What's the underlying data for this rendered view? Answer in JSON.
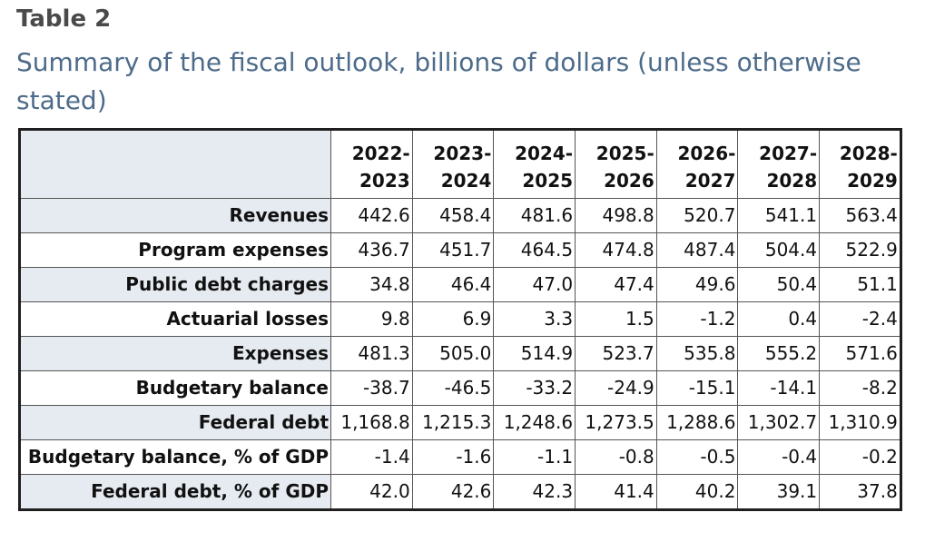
{
  "title": "Table 2",
  "subtitle": "Summary of the fiscal outlook, billions of dollars (unless otherwise stated)",
  "table": {
    "columns": [
      {
        "top": "2022-",
        "bottom": "2023"
      },
      {
        "top": "2023-",
        "bottom": "2024"
      },
      {
        "top": "2024-",
        "bottom": "2025"
      },
      {
        "top": "2025-",
        "bottom": "2026"
      },
      {
        "top": "2026-",
        "bottom": "2027"
      },
      {
        "top": "2027-",
        "bottom": "2028"
      },
      {
        "top": "2028-",
        "bottom": "2029"
      }
    ],
    "rows": [
      {
        "label": "Revenues",
        "values": [
          "442.6",
          "458.4",
          "481.6",
          "498.8",
          "520.7",
          "541.1",
          "563.4"
        ]
      },
      {
        "label": "Program expenses",
        "values": [
          "436.7",
          "451.7",
          "464.5",
          "474.8",
          "487.4",
          "504.4",
          "522.9"
        ]
      },
      {
        "label": "Public debt charges",
        "values": [
          "34.8",
          "46.4",
          "47.0",
          "47.4",
          "49.6",
          "50.4",
          "51.1"
        ]
      },
      {
        "label": "Actuarial losses",
        "values": [
          "9.8",
          "6.9",
          "3.3",
          "1.5",
          "-1.2",
          "0.4",
          "-2.4"
        ]
      },
      {
        "label": "Expenses",
        "values": [
          "481.3",
          "505.0",
          "514.9",
          "523.7",
          "535.8",
          "555.2",
          "571.6"
        ]
      },
      {
        "label": "Budgetary balance",
        "values": [
          "-38.7",
          "-46.5",
          "-33.2",
          "-24.9",
          "-15.1",
          "-14.1",
          "-8.2"
        ]
      },
      {
        "label": "Federal debt",
        "values": [
          "1,168.8",
          "1,215.3",
          "1,248.6",
          "1,273.5",
          "1,288.6",
          "1,302.7",
          "1,310.9"
        ]
      },
      {
        "label": "Budgetary balance, % of GDP",
        "values": [
          "-1.4",
          "-1.6",
          "-1.1",
          "-0.8",
          "-0.5",
          "-0.4",
          "-0.2"
        ]
      },
      {
        "label": "Federal debt, % of GDP",
        "values": [
          "42.0",
          "42.6",
          "42.3",
          "41.4",
          "40.2",
          "39.1",
          "37.8"
        ]
      }
    ]
  }
}
